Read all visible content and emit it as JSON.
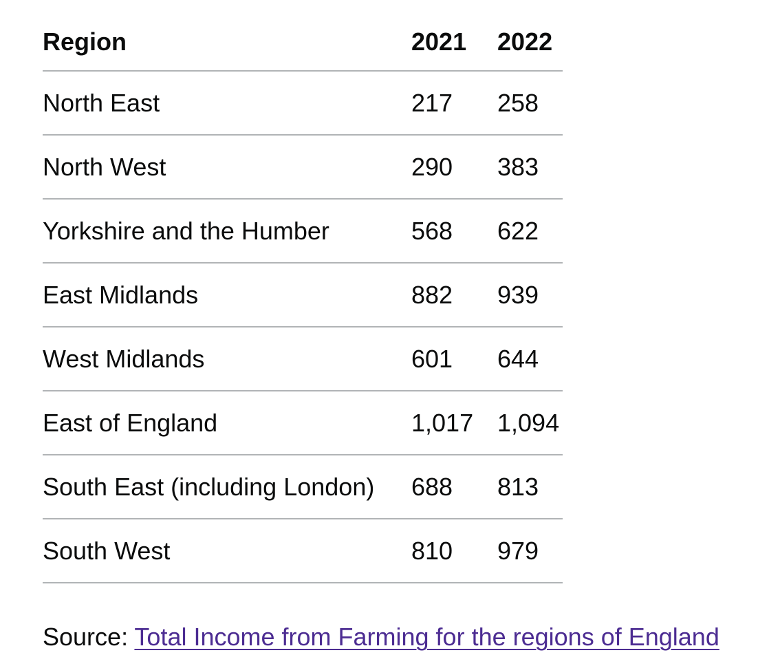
{
  "table": {
    "headers": [
      "Region",
      "2021",
      "2022"
    ],
    "rows": [
      [
        "North East",
        "217",
        "258"
      ],
      [
        "North West",
        "290",
        "383"
      ],
      [
        "Yorkshire and the Humber",
        "568",
        "622"
      ],
      [
        "East Midlands",
        "882",
        "939"
      ],
      [
        "West Midlands",
        "601",
        "644"
      ],
      [
        "East of England",
        "1,017",
        "1,094"
      ],
      [
        "South East (including London)",
        "688",
        "813"
      ],
      [
        "South West",
        "810",
        "979"
      ]
    ]
  },
  "source": {
    "prefix": "Source: ",
    "link_text": "Total Income from Farming for the regions of England"
  },
  "colors": {
    "text": "#0b0c0c",
    "link": "#4c2c92",
    "border": "#b1b4b6"
  }
}
